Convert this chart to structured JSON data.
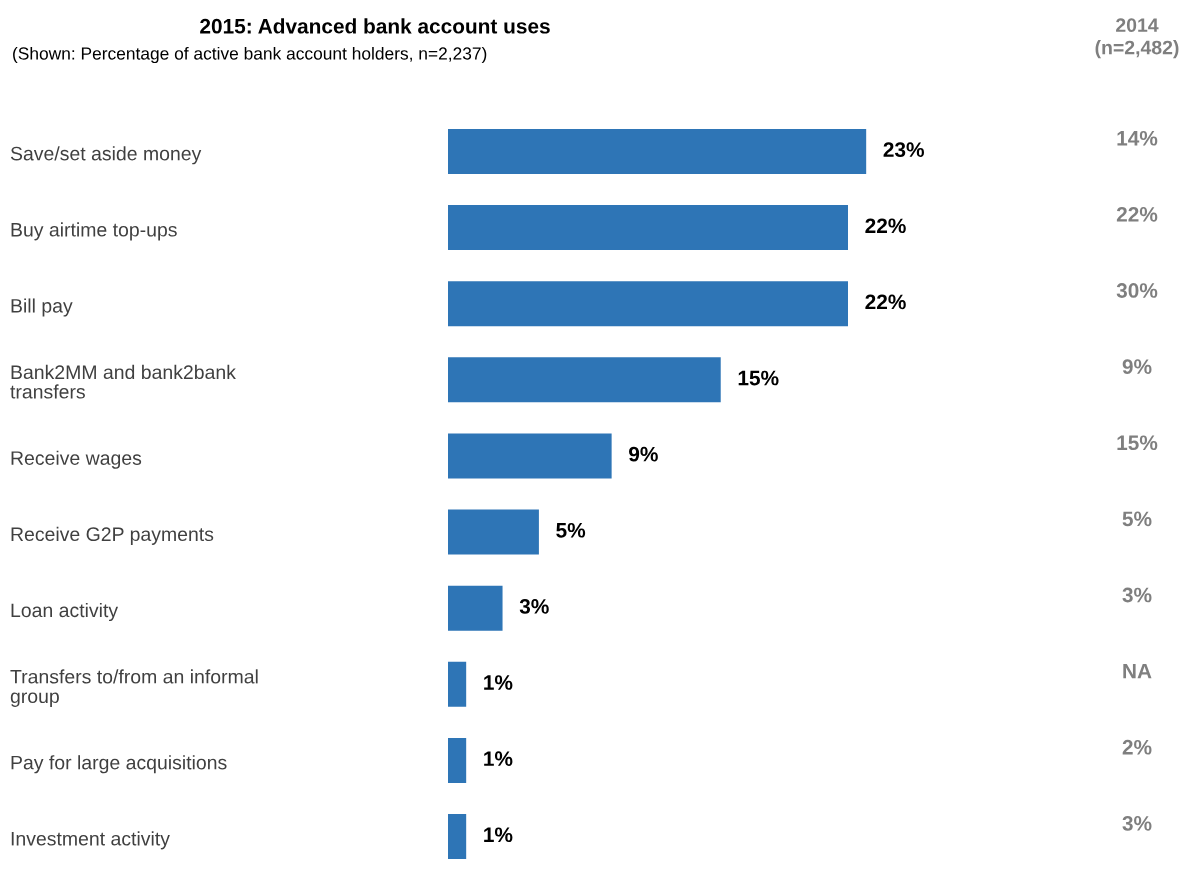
{
  "chart_data": {
    "type": "bar",
    "orientation": "horizontal",
    "title": "2015: Advanced bank account uses",
    "subtitle": "(Shown: Percentage of active bank account holders, n=2,237)",
    "categories": [
      "Save/set aside money",
      "Buy airtime top-ups",
      "Bill pay",
      "Bank2MM and bank2bank\ntransfers",
      "Receive wages",
      "Receive G2P payments",
      "Loan activity",
      "Transfers to/from an informal\ngroup",
      "Pay for large acquisitions",
      "Investment activity"
    ],
    "values": [
      23,
      22,
      22,
      15,
      9,
      5,
      3,
      1,
      1,
      1
    ],
    "value_labels": [
      "23%",
      "22%",
      "22%",
      "15%",
      "9%",
      "5%",
      "3%",
      "1%",
      "1%",
      "1%"
    ],
    "color": "#2e75b6",
    "annotations": [
      "2014\n(n=2,482)",
      "14%",
      "22%",
      "30%",
      "9%",
      "15%",
      "5%",
      "3%",
      "NA",
      "2%",
      "3%"
    ]
  }
}
